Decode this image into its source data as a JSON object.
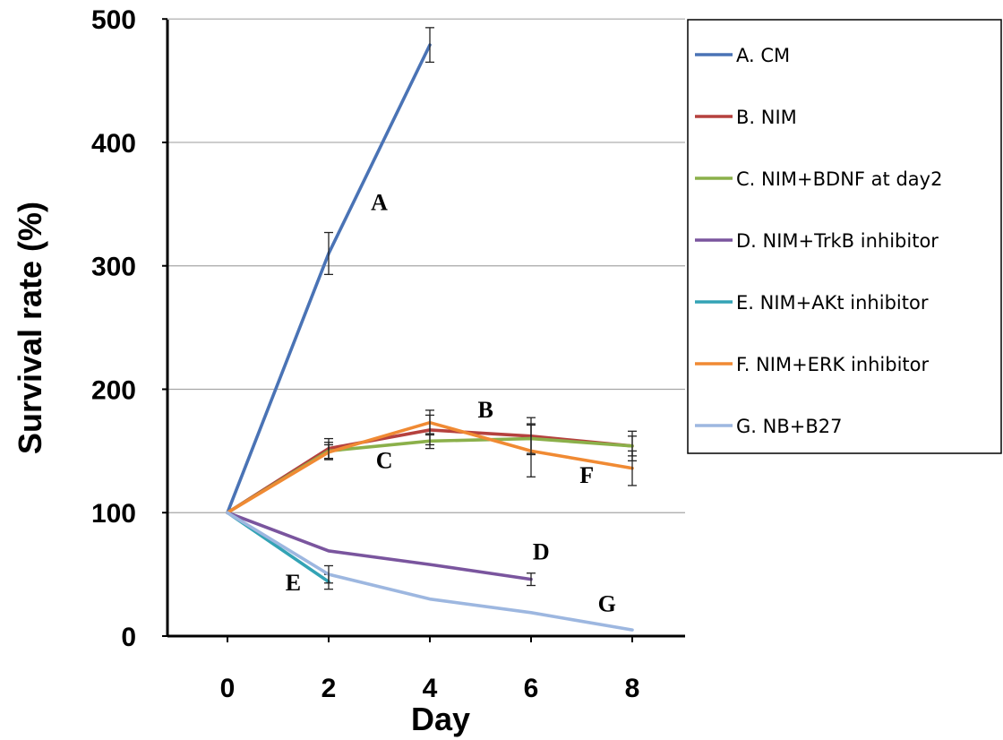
{
  "chart_data": {
    "type": "line",
    "xlabel": "Day",
    "ylabel": "Survival rate (%)",
    "x_ticks": [
      "0",
      "2",
      "4",
      "6",
      "8"
    ],
    "y_ticks": [
      "0",
      "100",
      "200",
      "300",
      "400",
      "500"
    ],
    "xlim": [
      0,
      8
    ],
    "ylim": [
      0,
      500
    ],
    "grid": "horizontal",
    "legend_position": "top-right",
    "series": [
      {
        "name": "A. CM",
        "label": "A",
        "color": "#4a73b5",
        "x": [
          0,
          2,
          4
        ],
        "y": [
          100,
          310,
          479
        ],
        "err": [
          0,
          17,
          14
        ]
      },
      {
        "name": "B. NIM",
        "label": "B",
        "color": "#b5413e",
        "x": [
          0,
          2,
          4,
          6,
          8
        ],
        "y": [
          100,
          152,
          167,
          162,
          154
        ],
        "err": [
          0,
          8,
          12,
          15,
          12
        ]
      },
      {
        "name": "C. NIM+BDNF at day2",
        "label": "C",
        "color": "#8bb04a",
        "x": [
          0,
          2,
          4,
          6,
          8
        ],
        "y": [
          100,
          150,
          158,
          160,
          154
        ],
        "err": [
          0,
          7,
          6,
          12,
          8
        ]
      },
      {
        "name": "D. NIM+TrkB inhibitor",
        "label": "D",
        "color": "#7a559e",
        "x": [
          0,
          2,
          4,
          6
        ],
        "y": [
          100,
          69,
          58,
          46
        ],
        "err": [
          0,
          0,
          0,
          5
        ]
      },
      {
        "name": "E. NIM+AKt inhibitor",
        "label": "E",
        "color": "#33a3b5",
        "x": [
          0,
          2
        ],
        "y": [
          100,
          44
        ],
        "err": [
          0,
          6
        ]
      },
      {
        "name": "F. NIM+ERK inhibitor",
        "label": "F",
        "color": "#f08a33",
        "x": [
          0,
          2,
          4,
          6,
          8
        ],
        "y": [
          100,
          149,
          173,
          150,
          136
        ],
        "err": [
          0,
          6,
          10,
          21,
          14
        ]
      },
      {
        "name": "G. NB+B27",
        "label": "G",
        "color": "#9db7e0",
        "x": [
          0,
          2,
          4,
          6,
          8
        ],
        "y": [
          100,
          50,
          30,
          19,
          5
        ],
        "err": [
          0,
          7,
          0,
          0,
          0
        ]
      }
    ],
    "point_labels": [
      {
        "text": "A",
        "x": 3.0,
        "y": 345
      },
      {
        "text": "B",
        "x": 5.1,
        "y": 177
      },
      {
        "text": "C",
        "x": 3.1,
        "y": 136
      },
      {
        "text": "D",
        "x": 6.2,
        "y": 62
      },
      {
        "text": "E",
        "x": 1.3,
        "y": 37
      },
      {
        "text": "F",
        "x": 7.1,
        "y": 124
      },
      {
        "text": "G",
        "x": 7.5,
        "y": 20
      }
    ]
  }
}
